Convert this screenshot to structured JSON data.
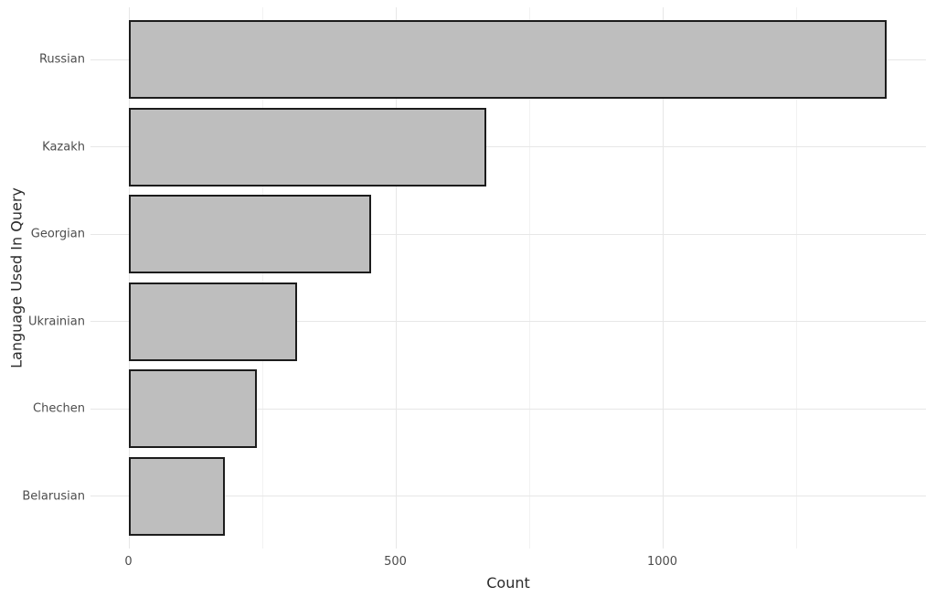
{
  "chart_data": {
    "type": "bar",
    "orientation": "horizontal",
    "title": "",
    "xlabel": "Count",
    "ylabel": "Language Used In Query",
    "categories": [
      "Russian",
      "Kazakh",
      "Georgian",
      "Ukrainian",
      "Chechen",
      "Belarusian"
    ],
    "values": [
      1420,
      670,
      455,
      315,
      240,
      180
    ],
    "x_ticks": [
      0,
      500,
      1000
    ],
    "x_tick_labels": [
      "0",
      "500",
      "1000"
    ],
    "x_minor_ticks": [
      250,
      750,
      1250
    ],
    "xlim": [
      -71,
      1494
    ],
    "grid": true,
    "legend": "none",
    "colors": {
      "background": "#ffffff",
      "bar_fill": "#bebebe",
      "bar_stroke": "#1c1c1c",
      "grid_major": "#e7e7e7",
      "grid_minor": "#f2f2f2",
      "tick_label": "#4d4d4d",
      "axis_title": "#2b2b2b"
    }
  }
}
